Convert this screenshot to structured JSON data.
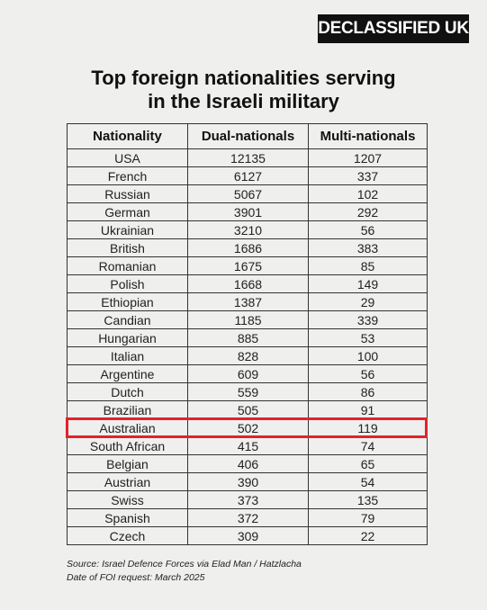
{
  "brand": "DECLASSIFIED UK",
  "title": {
    "line1": "Top foreign nationalities serving",
    "line2": "in the Israeli military"
  },
  "table": {
    "headers": [
      "Nationality",
      "Dual-nationals",
      "Multi-nationals"
    ],
    "rows": [
      [
        "USA",
        "12135",
        "1207"
      ],
      [
        "French",
        "6127",
        "337"
      ],
      [
        "Russian",
        "5067",
        "102"
      ],
      [
        "German",
        "3901",
        "292"
      ],
      [
        "Ukrainian",
        "3210",
        "56"
      ],
      [
        "British",
        "1686",
        "383"
      ],
      [
        "Romanian",
        "1675",
        "85"
      ],
      [
        "Polish",
        "1668",
        "149"
      ],
      [
        "Ethiopian",
        "1387",
        "29"
      ],
      [
        "Candian",
        "1185",
        "339"
      ],
      [
        "Hungarian",
        "885",
        "53"
      ],
      [
        "Italian",
        "828",
        "100"
      ],
      [
        "Argentine",
        "609",
        "56"
      ],
      [
        "Dutch",
        "559",
        "86"
      ],
      [
        "Brazilian",
        "505",
        "91"
      ],
      [
        "Australian",
        "502",
        "119"
      ],
      [
        "South African",
        "415",
        "74"
      ],
      [
        "Belgian",
        "406",
        "65"
      ],
      [
        "Austrian",
        "390",
        "54"
      ],
      [
        "Swiss",
        "373",
        "135"
      ],
      [
        "Spanish",
        "372",
        "79"
      ],
      [
        "Czech",
        "309",
        "22"
      ]
    ],
    "highlighted_row": "Australian",
    "highlight_color": "#e1232b"
  },
  "source": {
    "line1": "Source: Israel Defence Forces via Elad Man / Hatzlacha",
    "line2": "Date of FOI request: March 2025"
  }
}
